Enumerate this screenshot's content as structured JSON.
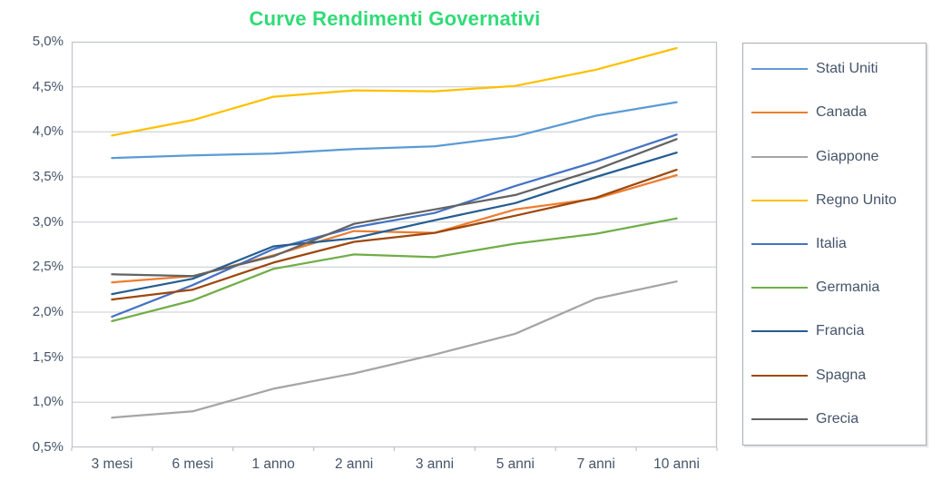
{
  "title": "Curve Rendimenti Governativi",
  "colors": {
    "title_text": "#30DB78",
    "axis_text": "#44546A",
    "gridline": "#D4D7DB",
    "plot_border": "#C2C6CB",
    "legend_border": "#A8ACB2",
    "background": "#FFFFFF"
  },
  "chart_data": {
    "type": "line",
    "title": "Curve Rendimenti Governativi",
    "xlabel": "",
    "ylabel": "",
    "categories": [
      "3 mesi",
      "6 mesi",
      "1 anno",
      "2 anni",
      "3 anni",
      "5 anni",
      "7 anni",
      "10 anni"
    ],
    "y_tick_labels": [
      "5,0%",
      "4,5%",
      "4,0%",
      "3,5%",
      "3,0%",
      "2,5%",
      "2,0%",
      "1,5%",
      "1,0%",
      "0,5%"
    ],
    "ylim": [
      0.5,
      5.0
    ],
    "y_step": 0.5,
    "y_unit": "percent",
    "grid": true,
    "legend_position": "right",
    "series": [
      {
        "name": "Stati Uniti",
        "color": "#5B9BD5",
        "values": [
          3.71,
          3.74,
          3.76,
          3.81,
          3.84,
          3.95,
          4.18,
          4.33
        ]
      },
      {
        "name": "Canada",
        "color": "#ED7D31",
        "values": [
          2.33,
          2.4,
          2.63,
          2.9,
          2.88,
          3.14,
          3.26,
          3.52
        ]
      },
      {
        "name": "Giappone",
        "color": "#A5A5A5",
        "values": [
          0.83,
          0.9,
          1.15,
          1.32,
          1.53,
          1.76,
          2.15,
          2.34
        ]
      },
      {
        "name": "Regno Unito",
        "color": "#FFC000",
        "values": [
          3.96,
          4.13,
          4.39,
          4.46,
          4.45,
          4.51,
          4.69,
          4.93
        ]
      },
      {
        "name": "Italia",
        "color": "#4472C4",
        "values": [
          1.95,
          2.3,
          2.7,
          2.94,
          3.1,
          3.4,
          3.67,
          3.97
        ]
      },
      {
        "name": "Germania",
        "color": "#70AD47",
        "values": [
          1.9,
          2.13,
          2.48,
          2.64,
          2.61,
          2.76,
          2.87,
          3.04
        ]
      },
      {
        "name": "Francia",
        "color": "#255E91",
        "values": [
          2.2,
          2.37,
          2.73,
          2.82,
          3.02,
          3.21,
          3.5,
          3.77
        ]
      },
      {
        "name": "Spagna",
        "color": "#9E480E",
        "values": [
          2.14,
          2.25,
          2.55,
          2.78,
          2.88,
          3.07,
          3.27,
          3.58
        ]
      },
      {
        "name": "Grecia",
        "color": "#636363",
        "values": [
          2.42,
          2.4,
          2.62,
          2.98,
          3.14,
          3.3,
          3.58,
          3.92
        ]
      }
    ]
  }
}
